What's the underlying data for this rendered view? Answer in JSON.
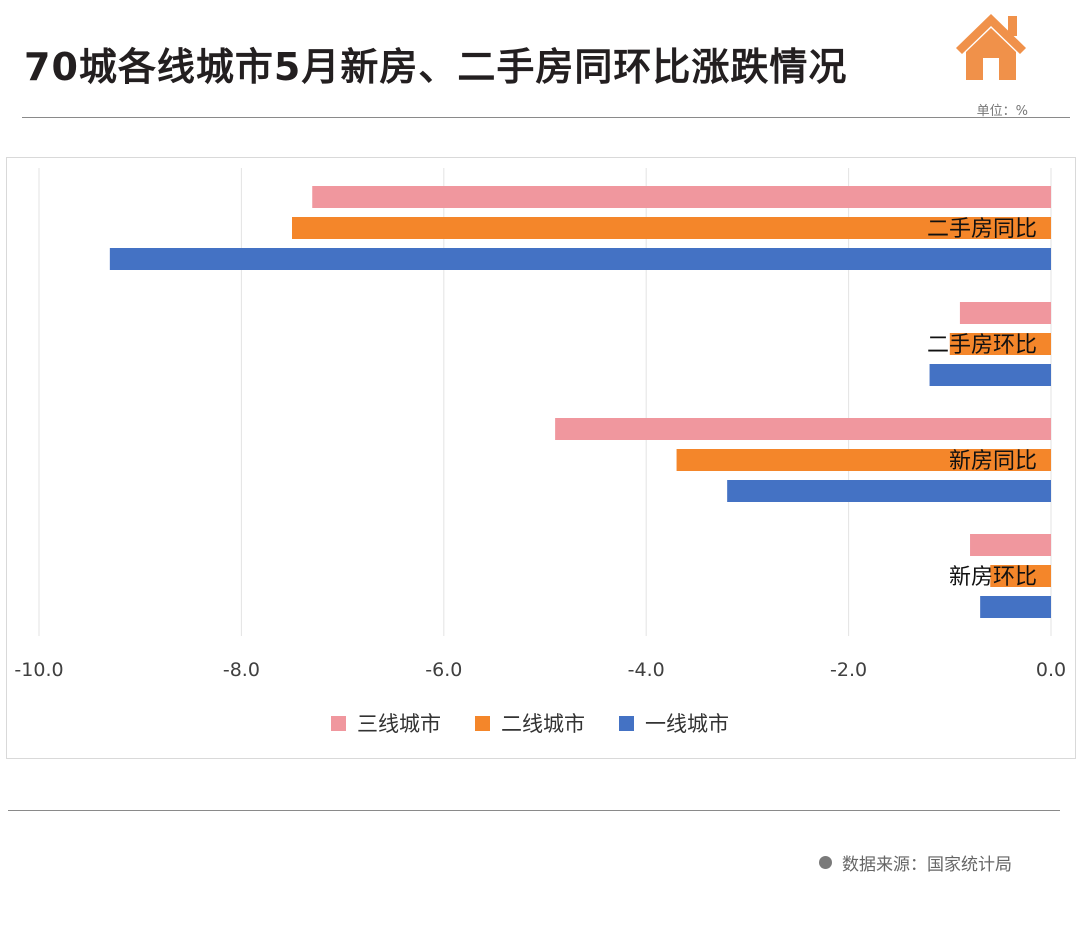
{
  "header": {
    "title": "70城各线城市5月新房、二手房同环比涨跌情况",
    "unit": "单位：%",
    "logo_icon": "house-icon",
    "logo_color": "#f0914a"
  },
  "footer": {
    "source_text": "数据来源：国家统计局",
    "bullet_icon": "circle-icon"
  },
  "chart_data": {
    "type": "bar",
    "orientation": "horizontal",
    "title": "",
    "xlabel": "",
    "ylabel": "",
    "xlim": [
      -10.0,
      0.0
    ],
    "x_ticks": [
      "-10.0",
      "-8.0",
      "-6.0",
      "-4.0",
      "-2.0",
      "0.0"
    ],
    "grid": "vertical",
    "legend_position": "bottom",
    "categories": [
      "二手房同比",
      "二手房环比",
      "新房同比",
      "新房环比"
    ],
    "series": [
      {
        "name": "三线城市",
        "color": "#f0979e",
        "values": [
          -7.3,
          -0.9,
          -4.9,
          -0.8
        ]
      },
      {
        "name": "二线城市",
        "color": "#f4862a",
        "values": [
          -7.5,
          -1.0,
          -3.7,
          -0.6
        ]
      },
      {
        "name": "一线城市",
        "color": "#4472c4",
        "values": [
          -9.3,
          -1.2,
          -3.2,
          -0.7
        ]
      }
    ]
  }
}
